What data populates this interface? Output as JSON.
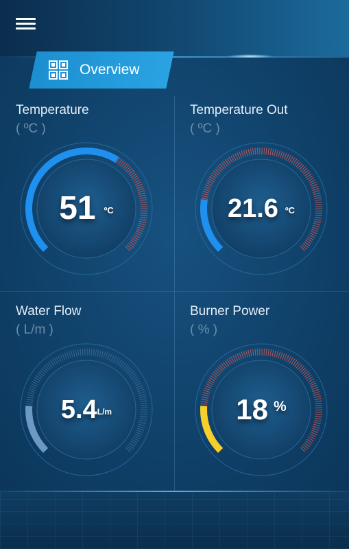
{
  "header": {
    "menu_icon": "hamburger-menu-icon"
  },
  "tab": {
    "label": "Overview",
    "icon": "grid-icon"
  },
  "panels": [
    {
      "title": "Temperature",
      "unit": "( ºC )",
      "value": "51",
      "value_unit": "ºC",
      "level": 0.62,
      "color": "#1e90f0",
      "track": "#d15a5a"
    },
    {
      "title": "Temperature Out",
      "unit": "( ºC )",
      "value": "21.6",
      "value_unit": "ºC",
      "level": 0.2,
      "color": "#1e90f0",
      "track": "#d15a5a"
    },
    {
      "title": "Water Flow",
      "unit": "( L/m )",
      "value": "5.4",
      "value_unit": "L/m",
      "level": 0.18,
      "color": "#6c98c4",
      "track": "#3f6c98"
    },
    {
      "title": "Burner Power",
      "unit": "( % )",
      "value": "18",
      "value_unit": "%",
      "level": 0.18,
      "color": "#f7cf2a",
      "track": "#c95c5c"
    }
  ]
}
